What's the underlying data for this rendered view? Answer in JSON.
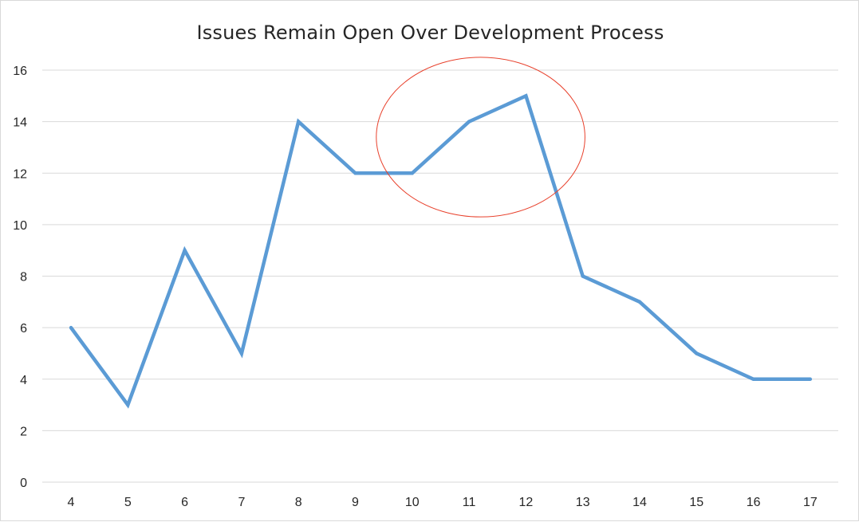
{
  "chart_data": {
    "type": "line",
    "title": "Issues Remain Open Over Development Process",
    "xlabel": "",
    "ylabel": "",
    "x": [
      "4",
      "5",
      "6",
      "7",
      "8",
      "9",
      "10",
      "11",
      "12",
      "13",
      "14",
      "15",
      "16",
      "17"
    ],
    "series": [
      {
        "values": [
          6,
          3,
          9,
          5,
          14,
          12,
          12,
          14,
          15,
          8,
          7,
          5,
          4,
          4
        ]
      }
    ],
    "yticks": [
      "0",
      "2",
      "4",
      "6",
      "8",
      "10",
      "12",
      "14",
      "16"
    ],
    "ylim": [
      0,
      16
    ],
    "grid": true,
    "legend": "none",
    "annotations": [
      {
        "type": "ellipse",
        "around_x": [
          "10",
          "12"
        ],
        "around_y": [
          10.3,
          16.5
        ],
        "color": "#e8412c"
      }
    ],
    "colors": {
      "series": "#5b9bd5",
      "grid": "#d9d9d9",
      "annotation": "#e8412c",
      "text": "#262626"
    }
  }
}
